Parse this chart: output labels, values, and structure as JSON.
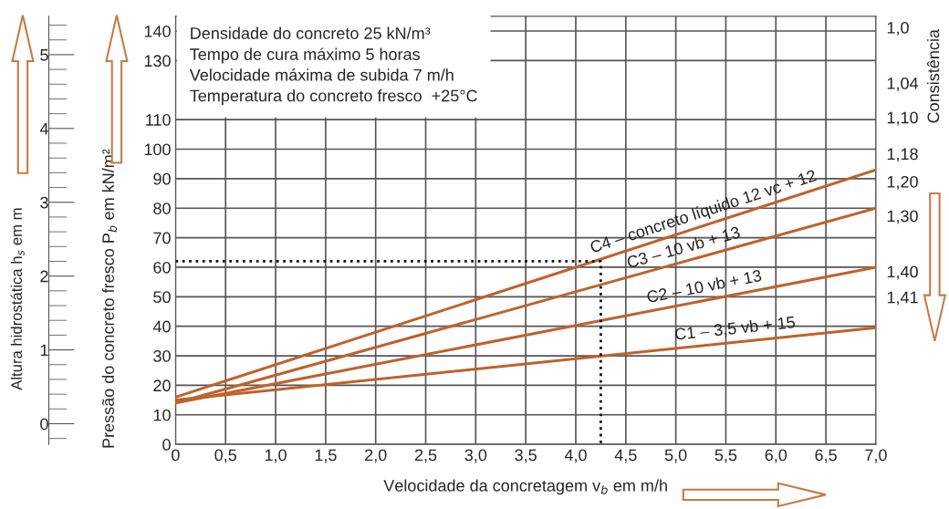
{
  "chart_data": {
    "type": "line",
    "xlabel": "Velocidade da concretagem v$_{b}$ em m/h",
    "ylabel": "Pressão do concreto fresco P$_{b}$ em kN/m²",
    "y2label": "Consistência",
    "y3label": "Altura hidrostática h$_{s}$ em m",
    "annotations": [
      "Densidade do concreto 25 kN/m³",
      "Tempo de cura máximo 5 horas",
      "Velocidade máxima de subida 7 m/h",
      "Temperatura do concreto fresco  +25°C",
      "1,0",
      "1,04",
      "1,10",
      "1,18",
      "1,20",
      "1,30",
      "1,40",
      "1,41"
    ],
    "xlim": [
      0,
      7
    ],
    "ylim": [
      0,
      145
    ],
    "xticks": [
      0,
      {
        "value": 0.5,
        "label": "0,5"
      },
      {
        "value": 1.0,
        "label": "1,0"
      },
      {
        "value": 1.5,
        "label": "1,5"
      },
      {
        "value": 2.0,
        "label": "2,0"
      },
      {
        "value": 2.5,
        "label": "2,5"
      },
      {
        "value": 3.0,
        "label": "3,0"
      },
      {
        "value": 3.5,
        "label": "3,5"
      },
      {
        "value": 4.0,
        "label": "4,0"
      },
      {
        "value": 4.5,
        "label": "4,5"
      },
      {
        "value": 5.0,
        "label": "5,0"
      },
      {
        "value": 5.5,
        "label": "5,5"
      },
      {
        "value": 6.0,
        "label": "6,0"
      },
      {
        "value": 6.5,
        "label": "6,5"
      },
      {
        "value": 7.0,
        "label": "7,0"
      }
    ],
    "yticks": [
      0,
      10,
      20,
      30,
      40,
      50,
      60,
      70,
      80,
      90,
      100,
      110,
      130,
      140
    ],
    "y3lim": [
      -0.28,
      5.52
    ],
    "y3ticks": [
      0,
      1,
      2,
      3,
      4,
      5
    ],
    "grid": true,
    "series": [
      {
        "name": "C4 – concreto líquido 12 vc + 12",
        "color": "#c0622a",
        "x": [
          0,
          7
        ],
        "values": [
          16,
          93
        ]
      },
      {
        "name": "C3 – 10 vb + 13",
        "color": "#c0622a",
        "x": [
          0,
          7
        ],
        "values": [
          14,
          80
        ]
      },
      {
        "name": "C2 – 10 vb + 13",
        "color": "#c0622a",
        "x": [
          0,
          7
        ],
        "values": [
          14,
          60
        ]
      },
      {
        "name": "C1 – 3,5 vb + 15",
        "color": "#c0622a",
        "x": [
          0,
          7
        ],
        "values": [
          15,
          39.5
        ]
      },
      {
        "color": "#111111",
        "line_style": "dotted",
        "x": [
          0,
          4.25,
          4.25
        ],
        "values": [
          62,
          62,
          0
        ]
      }
    ]
  }
}
